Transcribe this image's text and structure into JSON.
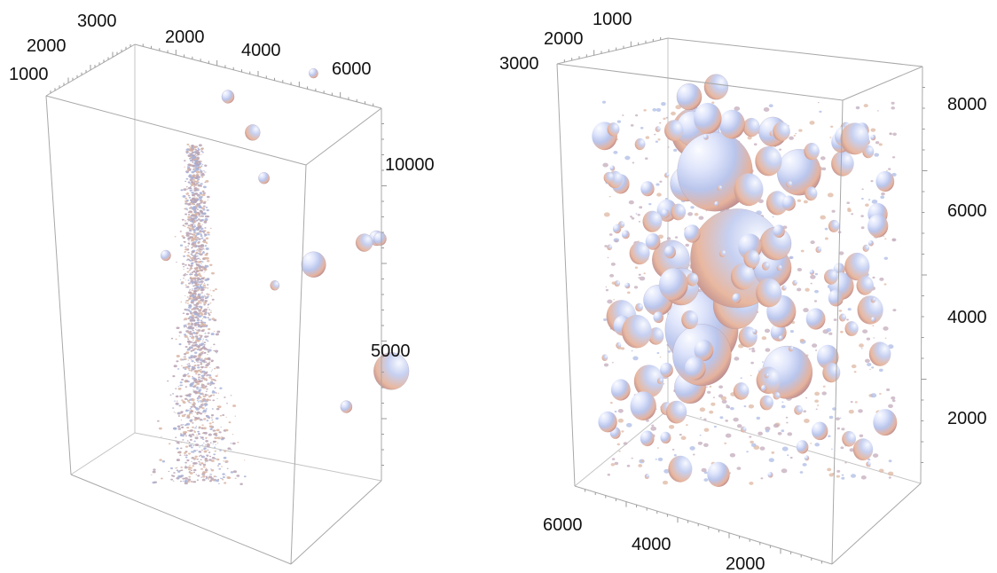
{
  "chart_data": [
    {
      "type": "scatter",
      "title": "",
      "style": "3d-bubble",
      "colors": {
        "highlight": "#f4f6ff",
        "body": "#b7c4ec",
        "shadow": "#e2aa90",
        "dark": "#8e6f86",
        "frame": "#a8a8a8"
      },
      "axes": {
        "a": {
          "ticks": [
            "1000",
            "2000",
            "3000"
          ]
        },
        "b": {
          "ticks": [
            "2000",
            "4000",
            "6000"
          ]
        },
        "z": {
          "ticks": [
            "5000",
            "10000"
          ]
        }
      },
      "bubbles": [
        {
          "x": 600,
          "y": 2850,
          "z": 6100,
          "r": 120
        },
        {
          "x": 5900,
          "y": 1500,
          "z": 1700,
          "r": 420
        },
        {
          "x": 4300,
          "y": 2400,
          "z": 5000,
          "r": 290
        },
        {
          "x": 5200,
          "y": 1800,
          "z": 5600,
          "r": 200
        },
        {
          "x": 5450,
          "y": 1700,
          "z": 5700,
          "r": 170
        },
        {
          "x": 5700,
          "y": 1900,
          "z": 5550,
          "r": 150
        },
        {
          "x": 2600,
          "y": 2600,
          "z": 9300,
          "r": 180
        },
        {
          "x": 2100,
          "y": 2900,
          "z": 10400,
          "r": 150
        },
        {
          "x": 3800,
          "y": 2100,
          "z": 10900,
          "r": 110
        },
        {
          "x": 2900,
          "y": 2500,
          "z": 7900,
          "r": 130
        },
        {
          "x": 4800,
          "y": 1600,
          "z": 900,
          "r": 140
        },
        {
          "x": 3200,
          "y": 2300,
          "z": 4700,
          "r": 110
        }
      ],
      "dense_cloud": {
        "z_range": [
          800,
          10000
        ],
        "description_count": 1800
      }
    },
    {
      "type": "scatter",
      "title": "",
      "style": "3d-bubble",
      "colors": {
        "highlight": "#f4f6ff",
        "body": "#b7c4ec",
        "shadow": "#e2aa90",
        "dark": "#8e6f86",
        "frame": "#a8a8a8"
      },
      "axes": {
        "a": {
          "ticks": [
            "1000",
            "2000",
            "3000"
          ]
        },
        "b": {
          "ticks": [
            "2000",
            "4000",
            "6000"
          ]
        },
        "z": {
          "ticks": [
            "2000",
            "4000",
            "6000",
            "8000"
          ]
        }
      },
      "bubbles": [
        {
          "x": 3300,
          "y": 1800,
          "z": 3800,
          "r": 900
        },
        {
          "x": 2200,
          "y": 1600,
          "z": 5800,
          "r": 720
        },
        {
          "x": 1200,
          "y": 1200,
          "z": 6800,
          "r": 460
        },
        {
          "x": 800,
          "y": 800,
          "z": 5800,
          "r": 320
        },
        {
          "x": 400,
          "y": 700,
          "z": 4200,
          "r": 360
        },
        {
          "x": 2100,
          "y": 1500,
          "z": 2400,
          "r": 700
        },
        {
          "x": 2300,
          "y": 1700,
          "z": 1800,
          "r": 560
        },
        {
          "x": 3300,
          "y": 1700,
          "z": 2800,
          "r": 430
        },
        {
          "x": 5200,
          "y": 1700,
          "z": 1200,
          "r": 480
        },
        {
          "x": 5200,
          "y": 1900,
          "z": 5500,
          "r": 420
        },
        {
          "x": 4500,
          "y": 1800,
          "z": 3500,
          "r": 360
        },
        {
          "x": 1300,
          "y": 1500,
          "z": 3400,
          "r": 340
        },
        {
          "x": 1100,
          "y": 1200,
          "z": 6900,
          "r": 320
        },
        {
          "x": 4600,
          "y": 1900,
          "z": 4000,
          "r": 300
        },
        {
          "x": 4100,
          "y": 1700,
          "z": 6500,
          "r": 270
        },
        {
          "x": 1900,
          "y": 1400,
          "z": 7700,
          "r": 230
        },
        {
          "x": 200,
          "y": 900,
          "z": 3300,
          "r": 280
        },
        {
          "x": 900,
          "y": 1200,
          "z": 7600,
          "r": 240
        },
        {
          "x": 1800,
          "y": 1400,
          "z": 1200,
          "r": 300
        }
      ],
      "dense_cloud": {
        "z_range": [
          500,
          8500
        ],
        "description_count": 600
      }
    }
  ]
}
